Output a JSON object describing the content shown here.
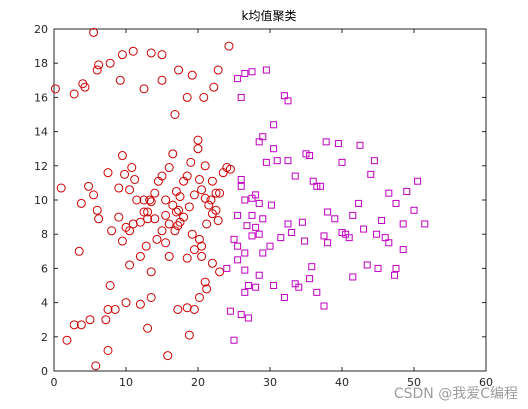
{
  "watermark": "CSDN @我爱C编程",
  "chart_data": {
    "type": "scatter",
    "title": "k均值聚类",
    "xlabel": "",
    "ylabel": "",
    "xlim": [
      0,
      60
    ],
    "ylim": [
      0,
      20
    ],
    "xticks": [
      0,
      10,
      20,
      30,
      40,
      50,
      60
    ],
    "yticks": [
      0,
      2,
      4,
      6,
      8,
      10,
      12,
      14,
      16,
      18,
      20
    ],
    "grid": false,
    "series": [
      {
        "marker": "circle",
        "color": "#cc0000",
        "points": [
          [
            5.5,
            19.8
          ],
          [
            0.2,
            16.5
          ],
          [
            2.8,
            16.2
          ],
          [
            4.0,
            16.8
          ],
          [
            4.3,
            16.6
          ],
          [
            6.0,
            17.6
          ],
          [
            6.2,
            17.9
          ],
          [
            7.8,
            18.0
          ],
          [
            9.5,
            18.5
          ],
          [
            11.0,
            18.7
          ],
          [
            13.5,
            18.6
          ],
          [
            15.0,
            18.5
          ],
          [
            15.0,
            17.0
          ],
          [
            17.3,
            17.6
          ],
          [
            20.8,
            16.0
          ],
          [
            22.2,
            16.6
          ],
          [
            22.8,
            17.6
          ],
          [
            24.3,
            19.0
          ],
          [
            19.2,
            17.3
          ],
          [
            18.5,
            16.0
          ],
          [
            16.8,
            15.0
          ],
          [
            12.5,
            16.5
          ],
          [
            9.2,
            17.0
          ],
          [
            1.0,
            10.7
          ],
          [
            3.8,
            9.8
          ],
          [
            4.8,
            10.8
          ],
          [
            5.5,
            10.3
          ],
          [
            6.0,
            9.4
          ],
          [
            7.5,
            11.6
          ],
          [
            9.0,
            10.7
          ],
          [
            9.5,
            12.6
          ],
          [
            9.8,
            11.5
          ],
          [
            10.5,
            10.6
          ],
          [
            10.8,
            11.9
          ],
          [
            11.2,
            11.2
          ],
          [
            12.5,
            10.0
          ],
          [
            13.0,
            9.3
          ],
          [
            13.5,
            9.9
          ],
          [
            14.5,
            11.1
          ],
          [
            15.0,
            11.4
          ],
          [
            15.5,
            10.0
          ],
          [
            16.0,
            11.9
          ],
          [
            16.5,
            12.7
          ],
          [
            17.0,
            10.5
          ],
          [
            17.5,
            10.2
          ],
          [
            18.0,
            11.1
          ],
          [
            18.5,
            11.4
          ],
          [
            19.0,
            12.2
          ],
          [
            19.5,
            10.3
          ],
          [
            20.0,
            13.5
          ],
          [
            20.2,
            11.2
          ],
          [
            20.5,
            10.6
          ],
          [
            21.0,
            10.1
          ],
          [
            21.5,
            9.7
          ],
          [
            22.0,
            9.2
          ],
          [
            22.5,
            10.4
          ],
          [
            23.0,
            10.4
          ],
          [
            24.0,
            11.9
          ],
          [
            24.5,
            11.8
          ],
          [
            23.5,
            11.6
          ],
          [
            20.0,
            13.0
          ],
          [
            21.0,
            12.0
          ],
          [
            18.0,
            9.0
          ],
          [
            17.0,
            9.3
          ],
          [
            16.0,
            8.6
          ],
          [
            15.0,
            8.2
          ],
          [
            14.0,
            8.9
          ],
          [
            13.0,
            8.9
          ],
          [
            12.0,
            8.7
          ],
          [
            11.0,
            8.6
          ],
          [
            10.0,
            8.4
          ],
          [
            9.0,
            9.0
          ],
          [
            8.0,
            8.2
          ],
          [
            6.2,
            8.9
          ],
          [
            3.5,
            7.0
          ],
          [
            7.8,
            5.0
          ],
          [
            10.5,
            6.2
          ],
          [
            12.0,
            6.7
          ],
          [
            13.5,
            5.8
          ],
          [
            16.0,
            6.7
          ],
          [
            18.5,
            6.6
          ],
          [
            20.5,
            6.7
          ],
          [
            21.0,
            5.2
          ],
          [
            22.0,
            6.3
          ],
          [
            23.0,
            5.8
          ],
          [
            20.2,
            4.3
          ],
          [
            21.2,
            4.8
          ],
          [
            18.5,
            3.7
          ],
          [
            19.5,
            3.6
          ],
          [
            17.2,
            3.6
          ],
          [
            13.5,
            4.3
          ],
          [
            12.0,
            3.9
          ],
          [
            10.0,
            4.0
          ],
          [
            7.5,
            3.6
          ],
          [
            7.2,
            3.0
          ],
          [
            3.8,
            2.7
          ],
          [
            1.8,
            1.8
          ],
          [
            2.8,
            2.7
          ],
          [
            5.0,
            3.0
          ],
          [
            7.5,
            1.2
          ],
          [
            5.8,
            0.3
          ],
          [
            15.8,
            0.9
          ],
          [
            18.8,
            2.1
          ],
          [
            13.0,
            2.5
          ],
          [
            8.5,
            3.6
          ],
          [
            14.3,
            7.7
          ],
          [
            15.5,
            7.5
          ],
          [
            17.2,
            8.5
          ],
          [
            19.2,
            8.0
          ],
          [
            20.5,
            7.3
          ],
          [
            16.8,
            8.2
          ],
          [
            22.5,
            9.4
          ],
          [
            21.2,
            8.6
          ],
          [
            12.8,
            7.3
          ],
          [
            9.5,
            7.6
          ],
          [
            13.3,
            10.0
          ],
          [
            16.5,
            9.7
          ],
          [
            18.8,
            9.6
          ],
          [
            17.3,
            9.4
          ],
          [
            11.5,
            10.0
          ],
          [
            20.2,
            7.7
          ],
          [
            19.5,
            7.1
          ],
          [
            22.8,
            8.8
          ],
          [
            15.5,
            9.1
          ],
          [
            10.5,
            8.2
          ],
          [
            14.0,
            10.4
          ],
          [
            17.5,
            8.7
          ],
          [
            12.5,
            9.3
          ],
          [
            22.0,
            11.1
          ],
          [
            21.8,
            10.0
          ]
        ]
      },
      {
        "marker": "square",
        "color": "#bf00bf",
        "points": [
          [
            25.5,
            17.1
          ],
          [
            26.5,
            17.4
          ],
          [
            27.5,
            17.5
          ],
          [
            29.5,
            17.6
          ],
          [
            32.0,
            16.1
          ],
          [
            32.5,
            15.8
          ],
          [
            26.0,
            16.0
          ],
          [
            29.0,
            13.7
          ],
          [
            30.5,
            14.4
          ],
          [
            28.5,
            13.4
          ],
          [
            30.5,
            13.0
          ],
          [
            32.5,
            12.3
          ],
          [
            29.5,
            12.2
          ],
          [
            33.5,
            11.4
          ],
          [
            35.0,
            12.7
          ],
          [
            35.5,
            12.6
          ],
          [
            37.8,
            13.4
          ],
          [
            39.5,
            13.3
          ],
          [
            42.5,
            13.2
          ],
          [
            44.5,
            12.3
          ],
          [
            40.0,
            12.2
          ],
          [
            37.0,
            10.8
          ],
          [
            36.5,
            10.8
          ],
          [
            26.0,
            10.8
          ],
          [
            27.5,
            10.1
          ],
          [
            28.0,
            10.3
          ],
          [
            26.5,
            10.0
          ],
          [
            28.5,
            9.8
          ],
          [
            29.0,
            8.9
          ],
          [
            28.0,
            8.4
          ],
          [
            27.5,
            7.9
          ],
          [
            28.5,
            8.0
          ],
          [
            25.5,
            9.1
          ],
          [
            26.8,
            8.5
          ],
          [
            25.0,
            7.7
          ],
          [
            25.5,
            7.3
          ],
          [
            26.5,
            6.9
          ],
          [
            31.5,
            7.8
          ],
          [
            32.5,
            8.6
          ],
          [
            34.5,
            8.7
          ],
          [
            38.0,
            9.3
          ],
          [
            37.5,
            7.9
          ],
          [
            39.0,
            8.9
          ],
          [
            40.0,
            8.1
          ],
          [
            41.0,
            7.8
          ],
          [
            41.5,
            9.1
          ],
          [
            43.0,
            8.3
          ],
          [
            44.8,
            8.0
          ],
          [
            45.5,
            8.8
          ],
          [
            46.5,
            7.5
          ],
          [
            47.5,
            9.8
          ],
          [
            48.5,
            8.6
          ],
          [
            48.5,
            7.1
          ],
          [
            50.0,
            9.4
          ],
          [
            51.5,
            8.6
          ],
          [
            49.0,
            10.5
          ],
          [
            50.5,
            11.1
          ],
          [
            46.5,
            10.4
          ],
          [
            45.0,
            6.0
          ],
          [
            47.5,
            6.0
          ],
          [
            47.3,
            5.6
          ],
          [
            41.5,
            5.5
          ],
          [
            37.5,
            3.8
          ],
          [
            35.5,
            5.4
          ],
          [
            35.8,
            6.1
          ],
          [
            33.5,
            5.1
          ],
          [
            34.0,
            4.9
          ],
          [
            32.0,
            4.3
          ],
          [
            30.5,
            5.0
          ],
          [
            28.5,
            5.6
          ],
          [
            28.0,
            4.9
          ],
          [
            27.0,
            5.0
          ],
          [
            26.5,
            5.9
          ],
          [
            25.5,
            6.5
          ],
          [
            24.5,
            3.5
          ],
          [
            26.0,
            3.3
          ],
          [
            27.0,
            3.1
          ],
          [
            25.0,
            1.8
          ],
          [
            26.5,
            4.6
          ],
          [
            24.0,
            6.0
          ],
          [
            33.0,
            8.1
          ],
          [
            30.0,
            7.3
          ],
          [
            27.5,
            9.1
          ],
          [
            26.0,
            11.2
          ],
          [
            31.0,
            12.3
          ],
          [
            36.0,
            11.1
          ],
          [
            44.0,
            11.5
          ],
          [
            40.5,
            8.0
          ],
          [
            38.0,
            7.5
          ],
          [
            46.0,
            7.8
          ],
          [
            43.5,
            6.2
          ],
          [
            36.5,
            4.6
          ],
          [
            29.0,
            6.9
          ],
          [
            30.2,
            9.7
          ],
          [
            34.8,
            7.6
          ],
          [
            42.3,
            9.8
          ]
        ]
      }
    ]
  }
}
